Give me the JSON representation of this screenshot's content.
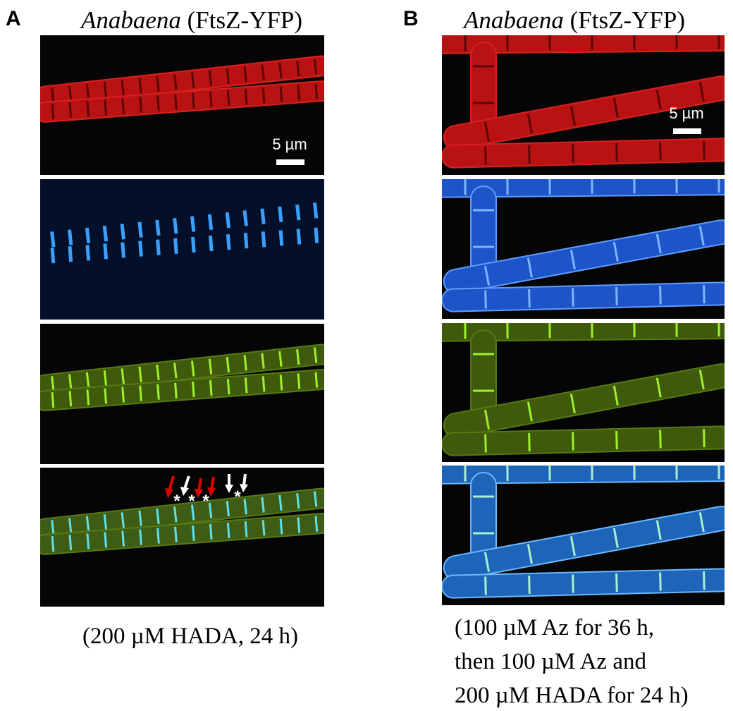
{
  "panels": [
    {
      "label": "A",
      "species": "Anabaena",
      "strain": "(FtsZ-YFP)",
      "scale_bar": "5 µm",
      "caption": [
        "(200 µM HADA, 24 h)"
      ],
      "markers": [
        "*",
        "*",
        "*",
        "*"
      ]
    },
    {
      "label": "B",
      "species": "Anabaena",
      "strain": "(FtsZ-YFP)",
      "scale_bar": "5 µm",
      "caption": [
        "(100 µM Az for 36 h,",
        "then 100 µM Az  and",
        "200 µM HADA for 24 h)"
      ]
    }
  ]
}
